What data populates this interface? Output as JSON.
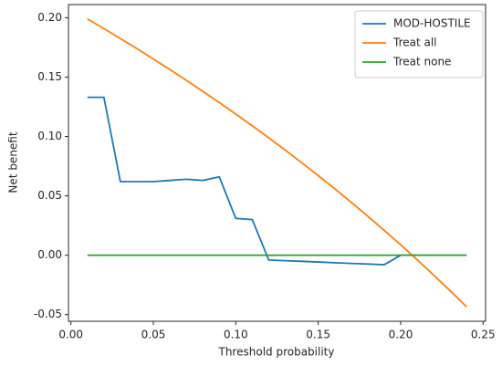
{
  "chart_data": {
    "type": "line",
    "xlabel": "Threshold probability",
    "ylabel": "Net benefit",
    "x": [
      0.01,
      0.02,
      0.03,
      0.04,
      0.05,
      0.06,
      0.07,
      0.08,
      0.09,
      0.1,
      0.11,
      0.12,
      0.13,
      0.14,
      0.15,
      0.16,
      0.17,
      0.18,
      0.19,
      0.2,
      0.21,
      0.22,
      0.23,
      0.24
    ],
    "series": [
      {
        "name": "MOD-HOSTILE",
        "color": "#1f77b4",
        "values": [
          0.133,
          0.133,
          0.062,
          0.062,
          0.062,
          0.063,
          0.064,
          0.063,
          0.066,
          0.031,
          0.03,
          -0.004,
          -0.0046,
          -0.0051,
          -0.0057,
          -0.0063,
          -0.0069,
          -0.0074,
          -0.008,
          0.0,
          0.0,
          0.0,
          0.0,
          0.0
        ]
      },
      {
        "name": "Treat all",
        "color": "#ff7f0e",
        "values": [
          0.199,
          0.1908,
          0.1825,
          0.174,
          0.1653,
          0.1564,
          0.1473,
          0.138,
          0.1286,
          0.1189,
          0.109,
          0.0989,
          0.0885,
          0.0779,
          0.0671,
          0.056,
          0.0446,
          0.0329,
          0.021,
          0.0088,
          -0.0038,
          -0.0167,
          -0.0299,
          -0.0434
        ]
      },
      {
        "name": "Treat none",
        "color": "#2ca02c",
        "values": [
          0,
          0,
          0,
          0,
          0,
          0,
          0,
          0,
          0,
          0,
          0,
          0,
          0,
          0,
          0,
          0,
          0,
          0,
          0,
          0,
          0,
          0,
          0,
          0
        ]
      }
    ],
    "xlim": [
      -0.0015,
      0.2515
    ],
    "xticks": [
      {
        "value": 0,
        "label": "0.00"
      },
      0.05,
      {
        "value": 0.1,
        "label": "0.10"
      },
      0.15,
      {
        "value": 0.2,
        "label": "0.20"
      },
      0.25
    ],
    "ylim": [
      -0.0556,
      0.2111
    ],
    "yticks": [
      -0.05,
      {
        "value": 0,
        "label": "0.00"
      },
      0.05,
      {
        "value": 0.1,
        "label": "0.10"
      },
      0.15,
      {
        "value": 0.2,
        "label": "0.20"
      }
    ],
    "grid": false,
    "legend": "upper right"
  }
}
